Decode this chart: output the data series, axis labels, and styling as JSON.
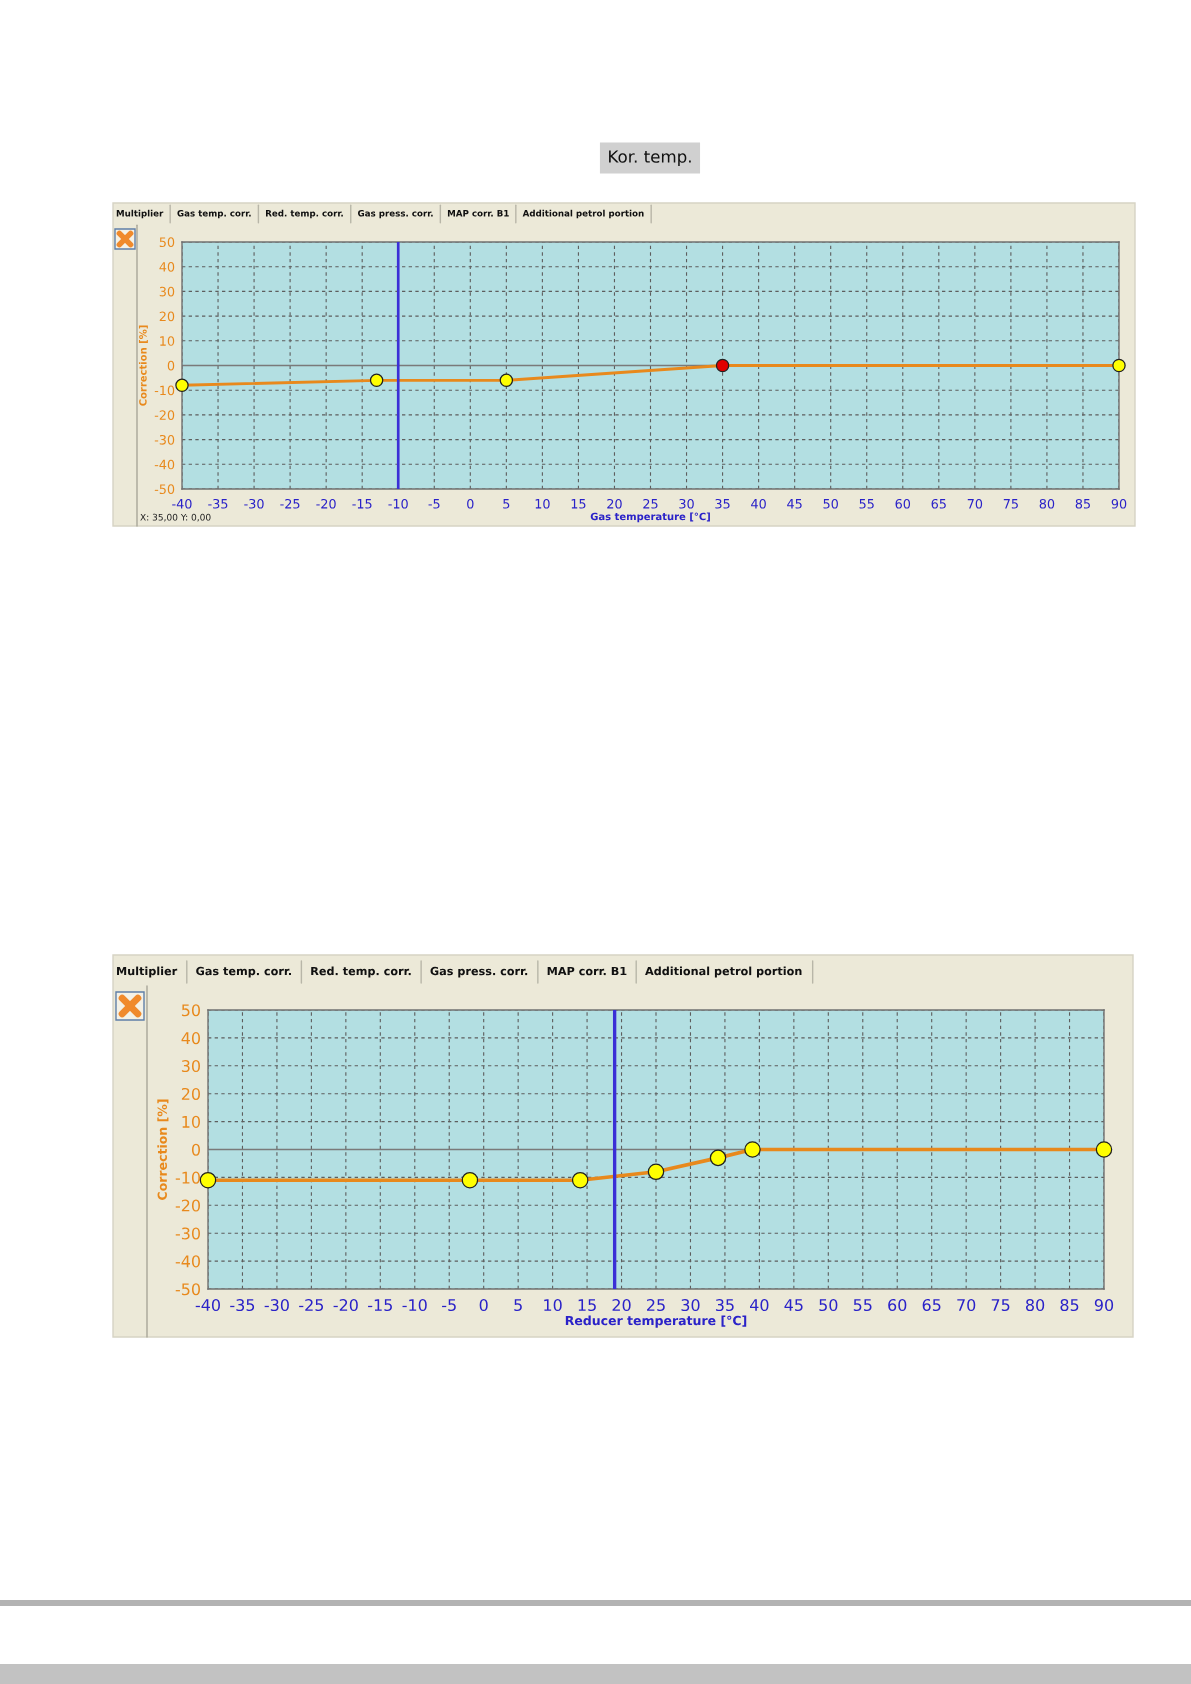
{
  "chart_data": [
    {
      "type": "line",
      "title": "Kor. temp.",
      "xlabel": "Gas temperature [°C]",
      "ylabel": "Correction [%]",
      "x": [
        -40,
        -13,
        5,
        35,
        90
      ],
      "series": [
        {
          "color": "#e8891c",
          "values": [
            -8,
            -6,
            -6,
            0,
            0
          ],
          "colors": [
            "#ffff00",
            "#ffff00",
            "#ffff00",
            "#e00000",
            "#ffff00"
          ]
        }
      ],
      "xlim": [
        -40,
        90
      ],
      "xticks": [
        -40,
        -35,
        -30,
        -25,
        -20,
        -15,
        -10,
        -5,
        0,
        5,
        10,
        15,
        20,
        25,
        30,
        35,
        40,
        45,
        50,
        55,
        60,
        65,
        70,
        75,
        80,
        85,
        90
      ],
      "ylim": [
        -50,
        50
      ],
      "yticks": [
        -50,
        -40,
        -30,
        -20,
        -10,
        0,
        10,
        20,
        30,
        40,
        50
      ],
      "grid": true,
      "marker": "circle",
      "line_style": "solid",
      "ref_lines": [
        {
          "axis": "x",
          "value": -10,
          "color": "#3b2fd6"
        },
        {
          "axis": "y",
          "value": 0,
          "color": "#7a7a7a"
        }
      ],
      "annotations": [
        "Multiplier",
        "Gas temp. corr.",
        "Red. temp. corr.",
        "Gas press. corr.",
        "MAP corr. B1",
        "Additional petrol portion",
        "X: 35,00 Y: 0,00"
      ]
    },
    {
      "type": "line",
      "xlabel": "Reducer temperature [°C]",
      "ylabel": "Correction [%]",
      "x": [
        -40,
        -2,
        14,
        25,
        34,
        39,
        90
      ],
      "series": [
        {
          "color": "#e8891c",
          "values": [
            -11,
            -11,
            -11,
            -8,
            -3,
            0,
            0
          ],
          "colors": [
            "#ffff00",
            "#ffff00",
            "#ffff00",
            "#ffff00",
            "#ffff00",
            "#ffff00",
            "#ffff00"
          ]
        }
      ],
      "xlim": [
        -40,
        90
      ],
      "xticks": [
        -40,
        -35,
        -30,
        -25,
        -20,
        -15,
        -10,
        -5,
        0,
        5,
        10,
        15,
        20,
        25,
        30,
        35,
        40,
        45,
        50,
        55,
        60,
        65,
        70,
        75,
        80,
        85,
        90
      ],
      "ylim": [
        -50,
        50
      ],
      "yticks": [
        -50,
        -40,
        -30,
        -20,
        -10,
        0,
        10,
        20,
        30,
        40,
        50
      ],
      "grid": true,
      "marker": "circle",
      "line_style": "solid",
      "ref_lines": [
        {
          "axis": "x",
          "value": 19,
          "color": "#3b2fd6"
        },
        {
          "axis": "y",
          "value": 0,
          "color": "#7a7a7a"
        }
      ],
      "annotations": [
        "Multiplier",
        "Gas temp. corr.",
        "Red. temp. corr.",
        "Gas press. corr.",
        "MAP corr. B1",
        "Additional petrol portion"
      ]
    }
  ]
}
